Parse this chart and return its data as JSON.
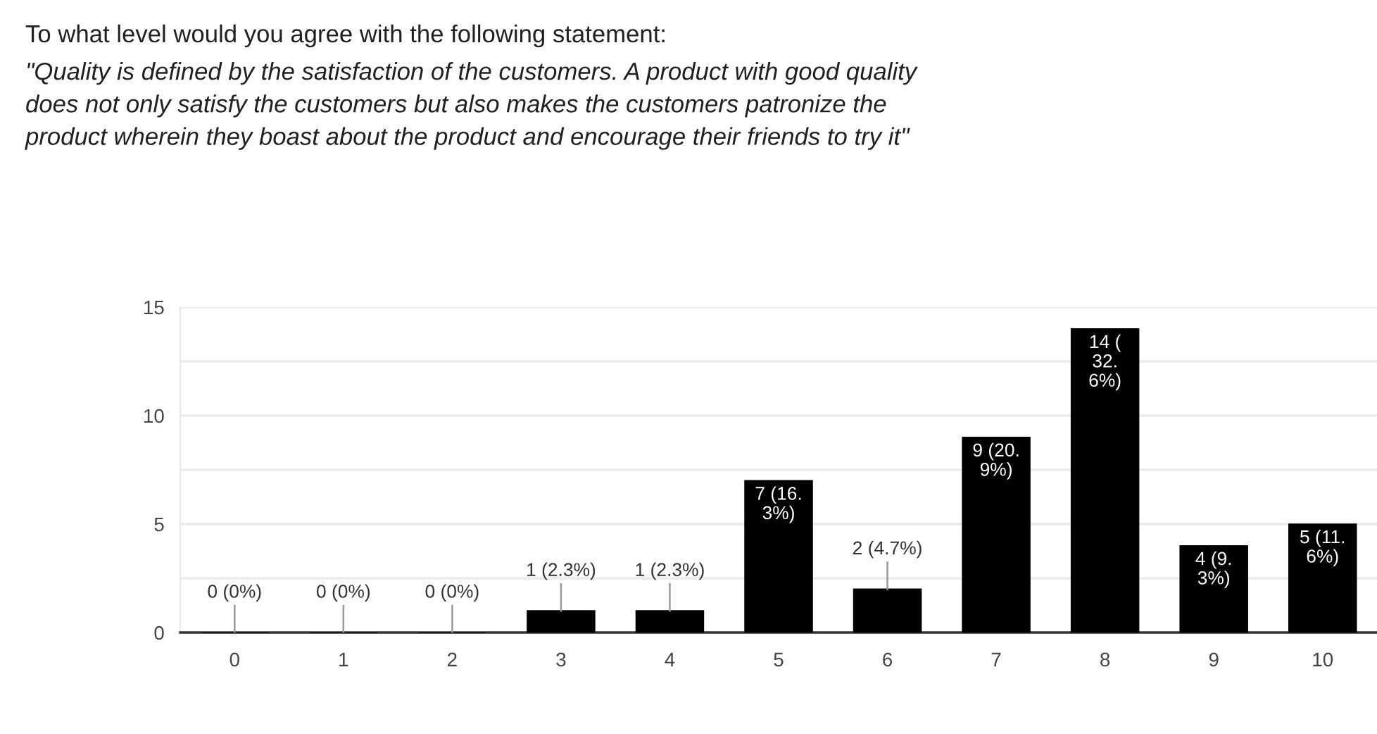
{
  "chart_data": {
    "type": "bar",
    "title": "To what level would you agree with the following statement:",
    "subtitle": "\"Quality is defined by the satisfaction of the customers. A product with good quality\ndoes not only satisfy the customers but also makes the customers patronize the\nproduct wherein they boast about the product and encourage their friends to try it\"",
    "categories": [
      "0",
      "1",
      "2",
      "3",
      "4",
      "5",
      "6",
      "7",
      "8",
      "9",
      "10"
    ],
    "values": [
      0,
      0,
      0,
      1,
      1,
      7,
      2,
      9,
      14,
      4,
      5
    ],
    "color": "#000000",
    "value_labels": [
      "0 (0%)",
      "0 (0%)",
      "0 (0%)",
      "1 (2.3%)",
      "1 (2.3%)",
      "7 (16.\n3%)",
      "2 (4.7%)",
      "9 (20.\n9%)",
      "14 (\n32.\n6%)",
      "4 (9.\n3%)",
      "5 (11.\n6%)"
    ],
    "ylim": [
      0,
      15
    ],
    "yticks": [
      0,
      {
        "value": 2.5,
        "label": null
      },
      5,
      {
        "value": 7.5,
        "label": null
      },
      10,
      {
        "value": 12.5,
        "label": null
      },
      15
    ],
    "grid": "y",
    "legend": false
  }
}
